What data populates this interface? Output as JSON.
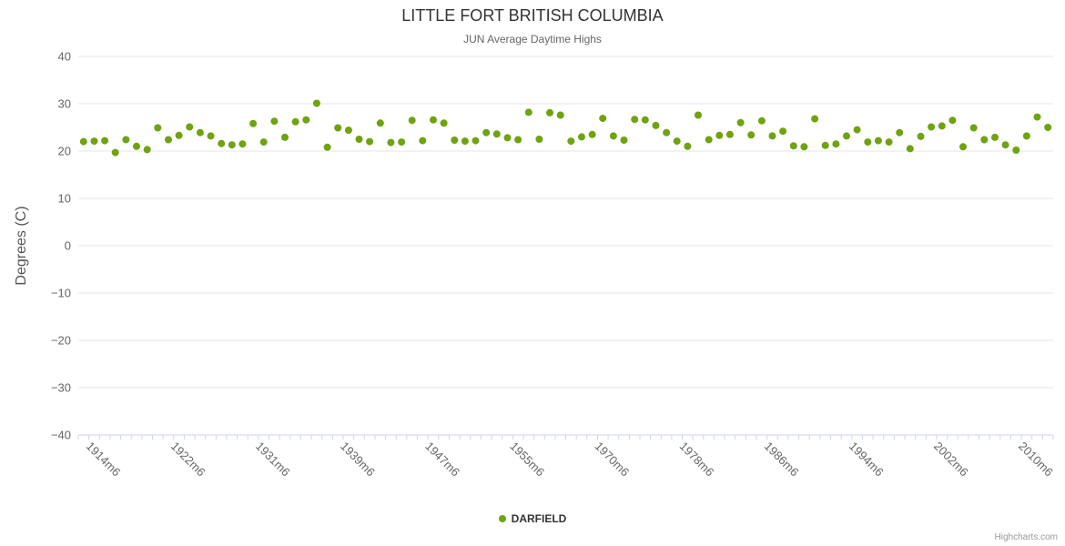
{
  "credits_label": "Highcharts.com",
  "colors": {
    "grid": "#e6e6e6",
    "axis_line": "#ccd6eb",
    "axis_label": "#666666",
    "title": "#333333",
    "subtitle": "#666666",
    "y_axis_title": "#555555",
    "legend_text": "#333333",
    "credits": "#999999",
    "point": "#6FA30F"
  },
  "chart_data": {
    "type": "scatter",
    "title": "LITTLE FORT BRITISH COLUMBIA",
    "subtitle": "JUN Average Daytime Highs",
    "ylabel": "Degrees (C)",
    "ylim": [
      -40,
      40
    ],
    "ytick_values": [
      40,
      30,
      20,
      10,
      0,
      -10,
      -20,
      -30,
      -40
    ],
    "ytick_labels": [
      "40",
      "30",
      "20",
      "10",
      "0",
      "−10",
      "−20",
      "−30",
      "−40"
    ],
    "grid": true,
    "legend_position": "bottom-center",
    "series_name": "DARFIELD",
    "point_color": "#6FA30F",
    "categories": [
      "1914m6",
      "1915m6",
      "1916m6",
      "1917m6",
      "1918m6",
      "1919m6",
      "1920m6",
      "1921m6",
      "1922m6",
      "1923m6",
      "1925m6",
      "1926m6",
      "1927m6",
      "1928m6",
      "1929m6",
      "1930m6",
      "1931m6",
      "1932m6",
      "1933m6",
      "1934m6",
      "1935m6",
      "1936m6",
      "1937m6",
      "1938m6",
      "1939m6",
      "1940m6",
      "1941m6",
      "1942m6",
      "1943m6",
      "1944m6",
      "1945m6",
      "1946m6",
      "1947m6",
      "1948m6",
      "1949m6",
      "1950m6",
      "1951m6",
      "1952m6",
      "1953m6",
      "1954m6",
      "1955m6",
      "1957m6",
      "1959m6",
      "1961m6",
      "1963m6",
      "1965m6",
      "1967m6",
      "1969m6",
      "1970m6",
      "1971m6",
      "1972m6",
      "1973m6",
      "1974m6",
      "1975m6",
      "1976m6",
      "1977m6",
      "1978m6",
      "1979m6",
      "1980m6",
      "1981m6",
      "1982m6",
      "1983m6",
      "1984m6",
      "1985m6",
      "1986m6",
      "1987m6",
      "1988m6",
      "1989m6",
      "1990m6",
      "1991m6",
      "1992m6",
      "1993m6",
      "1994m6",
      "1995m6",
      "1996m6",
      "1997m6",
      "1998m6",
      "1999m6",
      "2000m6",
      "2001m6",
      "2002m6",
      "2003m6",
      "2004m6",
      "2005m6",
      "2006m6",
      "2007m6",
      "2008m6",
      "2009m6",
      "2010m6",
      "2011m6",
      "2012m6",
      "2013m6"
    ],
    "values": [
      22.0,
      22.1,
      22.2,
      19.7,
      22.4,
      21.0,
      20.3,
      24.9,
      22.4,
      23.3,
      25.1,
      23.9,
      23.2,
      21.6,
      21.3,
      21.5,
      25.8,
      21.9,
      26.3,
      22.9,
      26.2,
      26.6,
      30.1,
      20.8,
      24.9,
      24.4,
      22.5,
      22.0,
      25.9,
      21.8,
      21.9,
      26.5,
      22.2,
      26.6,
      25.9,
      22.3,
      22.1,
      22.2,
      23.9,
      23.6,
      22.8,
      22.4,
      28.2,
      22.5,
      28.1,
      27.6,
      22.1,
      23.0,
      23.5,
      26.9,
      23.2,
      22.3,
      26.7,
      26.6,
      25.4,
      23.9,
      22.1,
      21.0,
      27.6,
      22.4,
      23.3,
      23.5,
      26.0,
      23.4,
      26.4,
      23.2,
      24.2,
      21.1,
      20.9,
      26.8,
      21.2,
      21.5,
      23.2,
      24.5,
      21.9,
      22.2,
      21.9,
      23.9,
      20.5,
      23.1,
      25.1,
      25.3,
      26.5,
      20.9,
      24.9,
      22.4,
      22.9,
      21.3,
      20.2,
      23.2,
      27.2,
      25.0
    ]
  }
}
